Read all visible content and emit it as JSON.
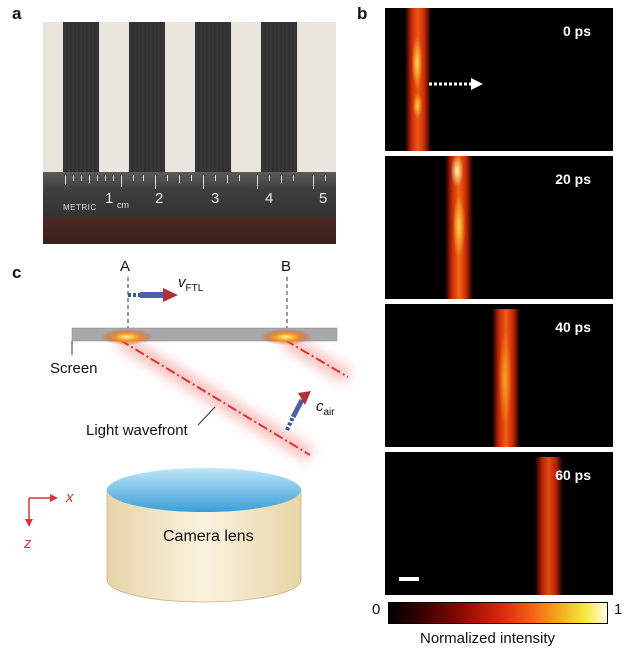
{
  "panel_labels": {
    "a": "a",
    "b": "b",
    "c": "c"
  },
  "panel_a": {
    "ruler_text": "METRIC",
    "ruler_unit": "cm",
    "ruler_numbers": [
      "1",
      "2",
      "3",
      "4",
      "5"
    ]
  },
  "panel_b": {
    "frames": [
      {
        "label": "0 ps"
      },
      {
        "label": "20 ps"
      },
      {
        "label": "40 ps"
      },
      {
        "label": "60 ps"
      }
    ],
    "colorbar": {
      "min_label": "0",
      "max_label": "1",
      "title": "Normalized intensity"
    }
  },
  "panel_c": {
    "point_a": "A",
    "point_b": "B",
    "v_symbol": "v",
    "v_subscript": "FTL",
    "screen_label": "Screen",
    "wavefront_label": "Light wavefront",
    "c_symbol": "c",
    "c_subscript": "air",
    "axis_x": "x",
    "axis_z": "z",
    "lens_label": "Camera lens"
  },
  "colors": {
    "streak_hot": "#ffe15a",
    "streak_red": "#e0300a",
    "arrow_red": "#c0392b",
    "arrow_blue": "#2c5aa0",
    "lens_blue": "#4fb0e0",
    "lens_body": "#f3e6c6",
    "screen_gray": "#a9a9a9"
  }
}
